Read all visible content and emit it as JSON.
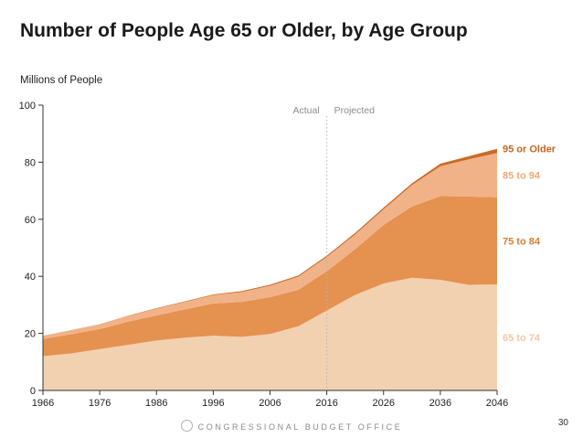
{
  "title": "Number of People Age 65 or Older, by Age Group",
  "footer": "CONGRESSIONAL BUDGET OFFICE",
  "page_number": "30",
  "chart_data": {
    "type": "area",
    "stacked": true,
    "title": "Number of People Age 65 or Older, by Age Group",
    "ylabel": "Millions of People",
    "xlabel": "",
    "ylim": [
      0,
      100
    ],
    "yticks": [
      "0",
      "20",
      "40",
      "60",
      "80",
      "100"
    ],
    "xticks": [
      "1966",
      "1976",
      "1986",
      "1996",
      "2006",
      "2016",
      "2026",
      "2036",
      "2046"
    ],
    "xlim": [
      1966,
      2046
    ],
    "divider": {
      "x": 2016,
      "left_label": "Actual",
      "right_label": "Projected"
    },
    "x": [
      1966,
      1971,
      1976,
      1981,
      1986,
      1991,
      1996,
      2001,
      2006,
      2011,
      2016,
      2021,
      2026,
      2031,
      2036,
      2041,
      2046
    ],
    "series": [
      {
        "name": "65 to 74",
        "color": "#f2d1b0",
        "label_color": "#f0c8a4",
        "values": [
          12.0,
          13.0,
          14.5,
          16.0,
          17.5,
          18.5,
          19.2,
          18.8,
          19.8,
          22.5,
          28.0,
          33.5,
          37.5,
          39.5,
          38.8,
          37.0,
          37.2
        ]
      },
      {
        "name": "75 to 84",
        "color": "#e5914f",
        "label_color": "#de7b32",
        "values": [
          6.0,
          6.7,
          7.0,
          8.1,
          8.8,
          9.9,
          11.3,
          12.2,
          12.9,
          12.8,
          13.8,
          16.0,
          20.5,
          25.0,
          29.3,
          31.0,
          30.5
        ]
      },
      {
        "name": "85 to 94",
        "color": "#f2b288",
        "label_color": "#f0a877",
        "values": [
          1.1,
          1.4,
          1.6,
          2.0,
          2.4,
          2.6,
          2.9,
          3.5,
          4.0,
          4.6,
          5.0,
          5.2,
          5.5,
          7.5,
          10.5,
          13.0,
          15.5
        ]
      },
      {
        "name": "95 or Older",
        "color": "#c96a28",
        "label_color": "#c8641f",
        "values": [
          0.05,
          0.06,
          0.08,
          0.1,
          0.15,
          0.2,
          0.25,
          0.3,
          0.35,
          0.4,
          0.45,
          0.5,
          0.55,
          0.6,
          0.9,
          1.1,
          1.5
        ]
      }
    ]
  }
}
